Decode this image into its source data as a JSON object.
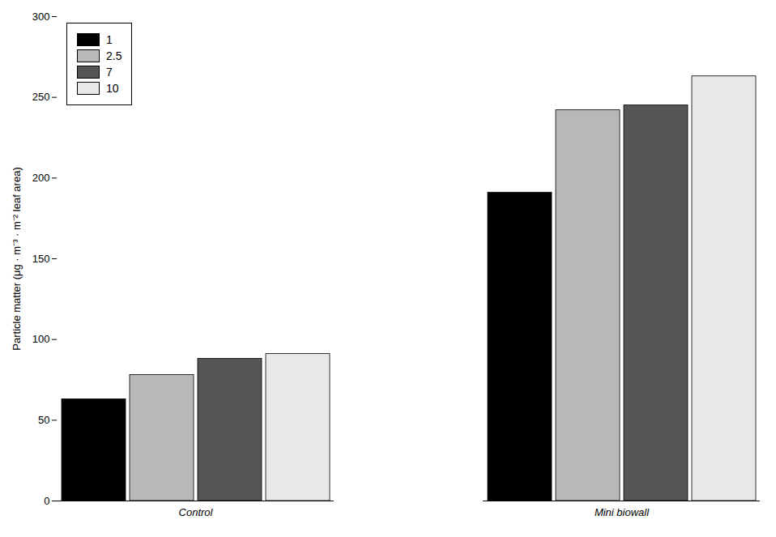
{
  "chart_data": {
    "type": "bar",
    "categories": [
      "Control",
      "Mini biowall"
    ],
    "series": [
      {
        "name": "1",
        "color": "#000000",
        "values": [
          63,
          191
        ]
      },
      {
        "name": "2.5",
        "color": "#b8b8b8",
        "values": [
          78,
          242
        ]
      },
      {
        "name": "7",
        "color": "#555555",
        "values": [
          88,
          245
        ]
      },
      {
        "name": "10",
        "color": "#e8e8e8",
        "values": [
          91,
          263
        ]
      }
    ],
    "ylabel": "Particle matter (μg · m⁻³ · m⁻² leaf area)",
    "ylim": [
      0,
      300
    ],
    "yticks": [
      0,
      50,
      100,
      150,
      200,
      250,
      300
    ],
    "legend": "upper left"
  }
}
